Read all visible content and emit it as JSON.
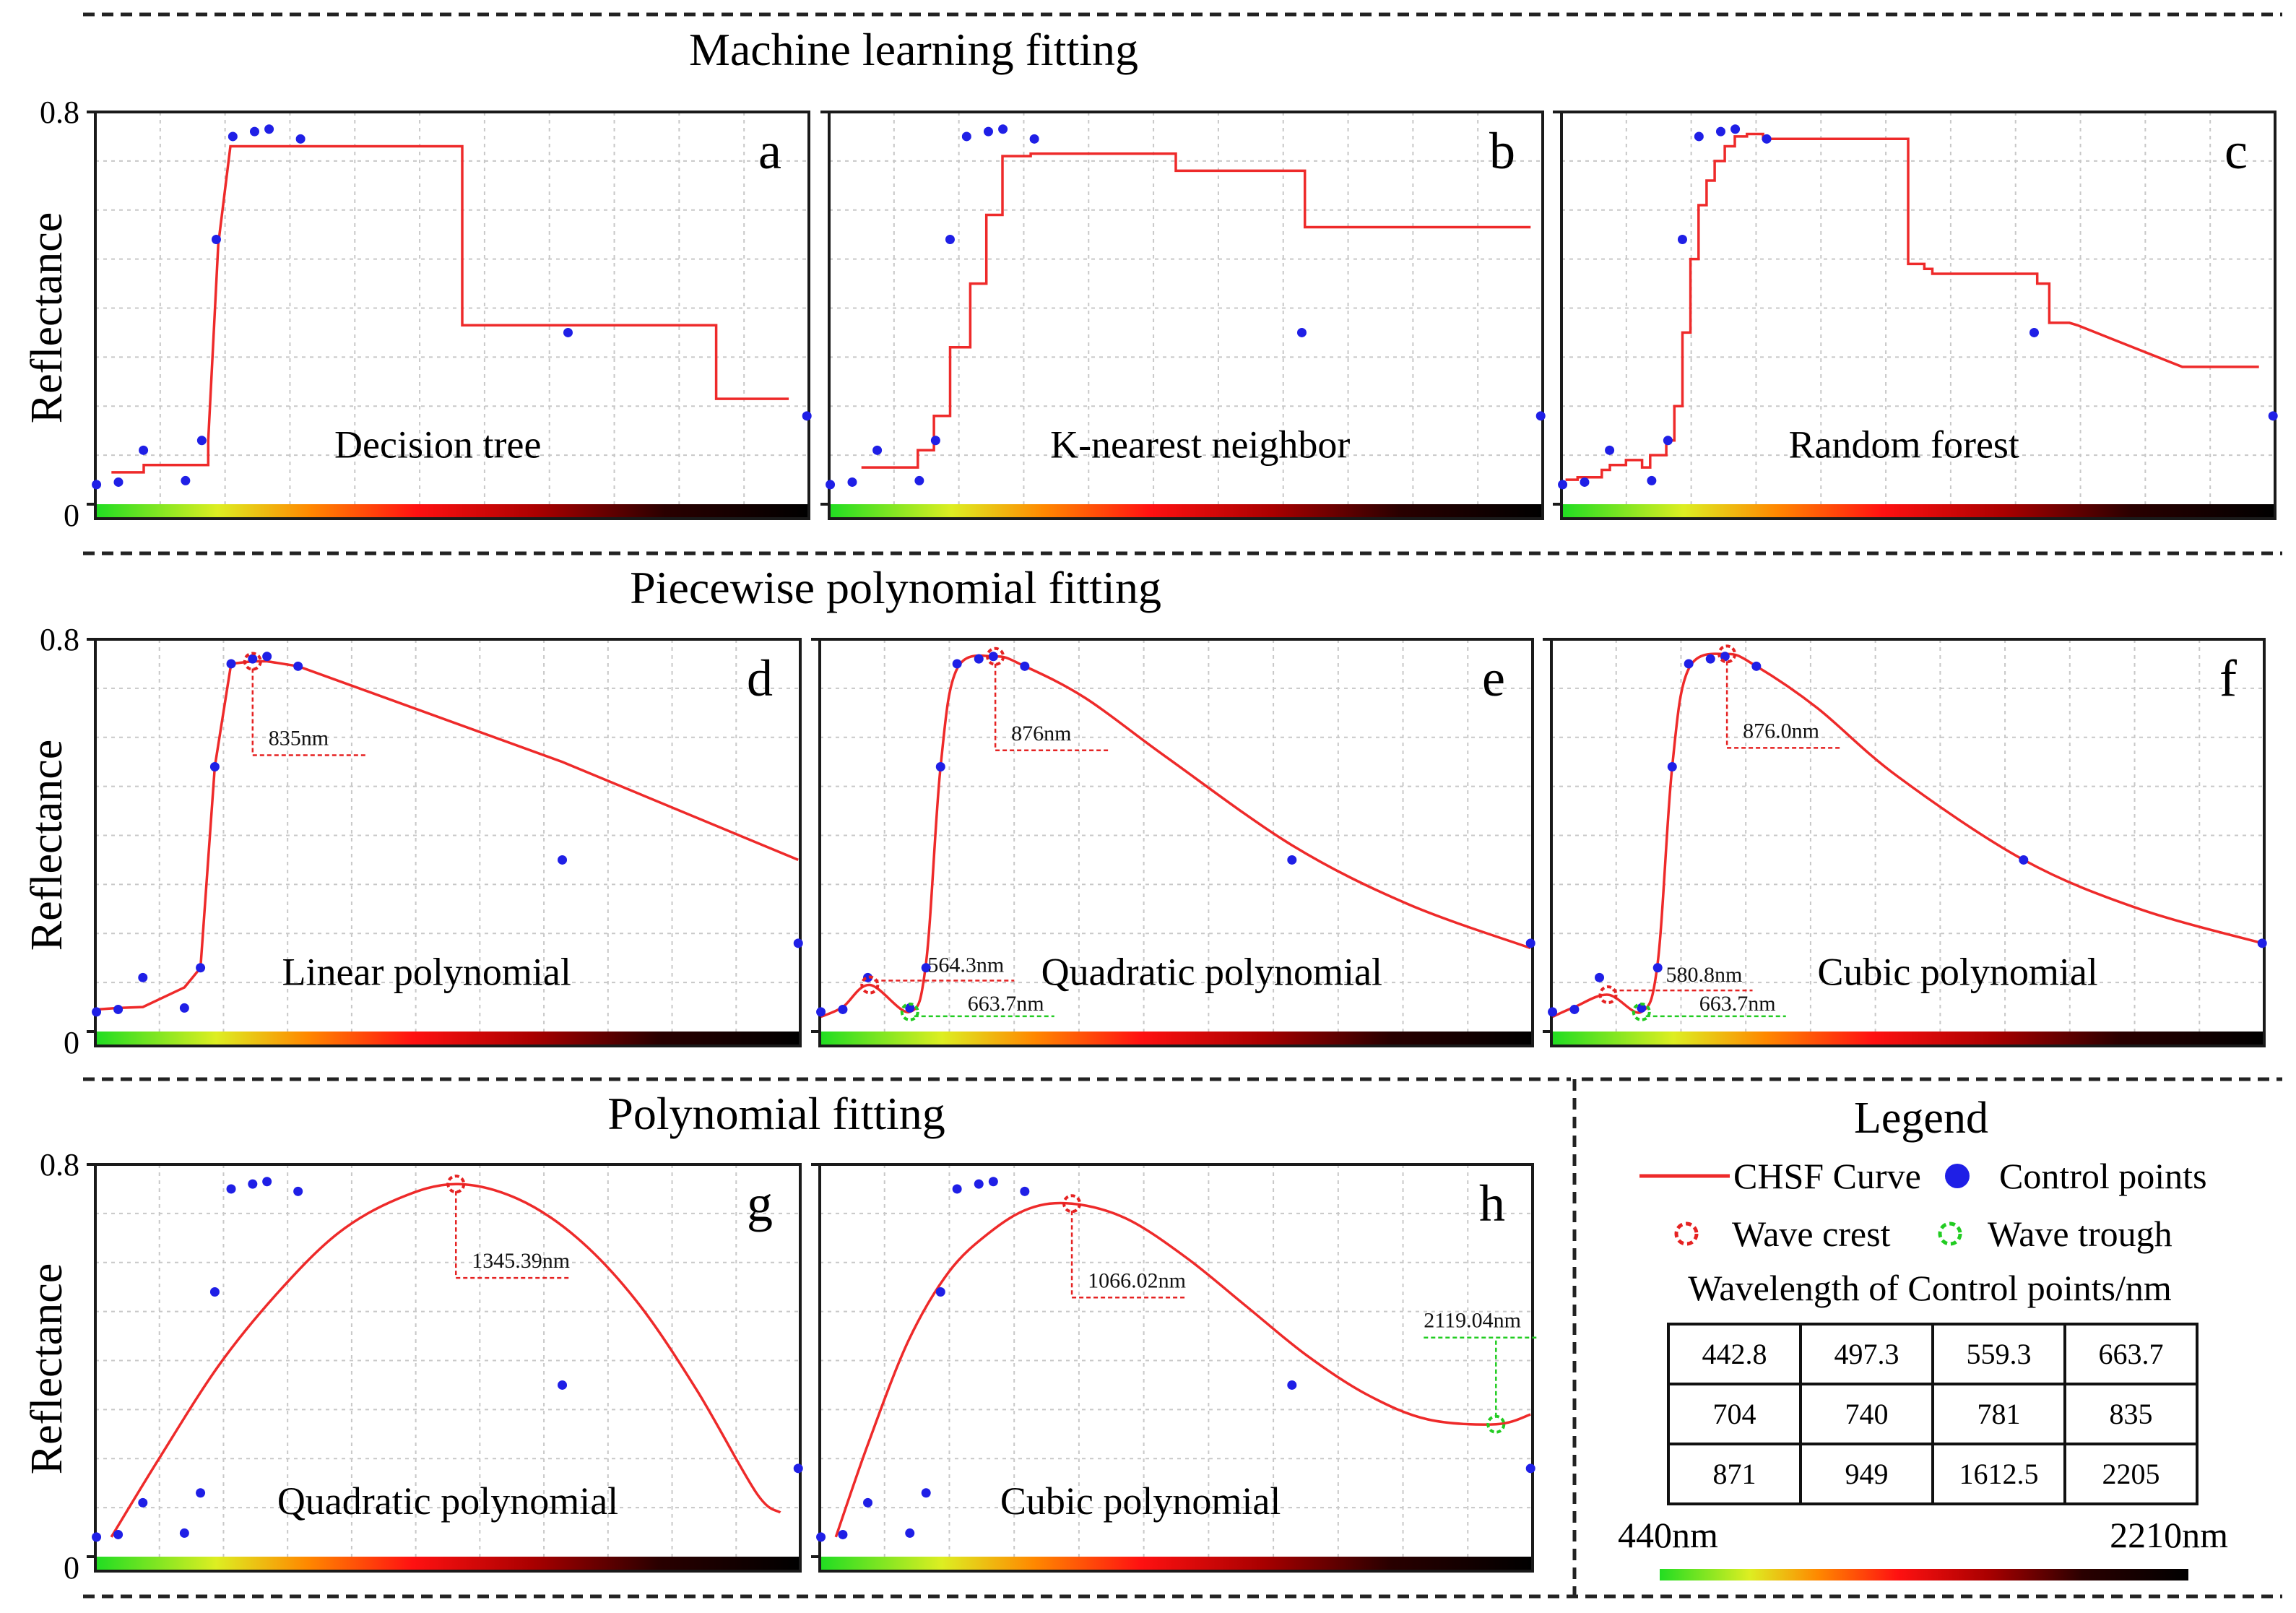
{
  "sections": {
    "ml": "Machine learning fitting",
    "piecewise": "Piecewise polynomial fitting",
    "poly": "Polynomial fitting"
  },
  "axes": {
    "ylabel": "Reflectance",
    "ymax_label": "0.8",
    "ymin_label": "0",
    "ylim": [
      0,
      0.8
    ],
    "xlim": [
      440,
      2210
    ]
  },
  "colors": {
    "curve": "#ee2a2a",
    "points": "#1f1fe6",
    "crest": "#e52222",
    "trough": "#22cc22",
    "grid": "#c8c8c8"
  },
  "control_points": {
    "wavelength": [
      442.8,
      497.3,
      559.3,
      663.7,
      704,
      740,
      781,
      835,
      871,
      949,
      1612.5,
      2205
    ],
    "reflectance": [
      0.04,
      0.045,
      0.11,
      0.048,
      0.13,
      0.54,
      0.75,
      0.76,
      0.765,
      0.745,
      0.35,
      0.18
    ]
  },
  "chart_data": [
    {
      "id": "a",
      "type": "line",
      "letter": "a",
      "label": "Decision tree",
      "series": [
        {
          "name": "CHSF Curve",
          "x": [
            480,
            560,
            560,
            720,
            720,
            745,
            745,
            775,
            775,
            1350,
            1350,
            1980,
            1980,
            2160
          ],
          "y": [
            0.065,
            0.065,
            0.08,
            0.08,
            0.13,
            0.53,
            0.53,
            0.73,
            0.73,
            0.73,
            0.365,
            0.365,
            0.215,
            0.215
          ]
        }
      ]
    },
    {
      "id": "b",
      "type": "line",
      "letter": "b",
      "label": "K-nearest neighbor",
      "series": [
        {
          "name": "CHSF Curve",
          "x": [
            520,
            660,
            660,
            700,
            700,
            740,
            740,
            790,
            790,
            830,
            830,
            870,
            870,
            940,
            940,
            1300,
            1300,
            1620,
            1620,
            2180
          ],
          "y": [
            0.075,
            0.075,
            0.11,
            0.11,
            0.18,
            0.18,
            0.32,
            0.32,
            0.45,
            0.45,
            0.59,
            0.59,
            0.71,
            0.71,
            0.715,
            0.715,
            0.68,
            0.68,
            0.565,
            0.565
          ]
        }
      ]
    },
    {
      "id": "c",
      "type": "line",
      "letter": "c",
      "label": "Random forest",
      "series": [
        {
          "name": "CHSF Curve",
          "x": [
            450,
            480,
            480,
            540,
            540,
            560,
            560,
            600,
            600,
            640,
            640,
            660,
            660,
            700,
            700,
            720,
            720,
            740,
            740,
            760,
            760,
            780,
            780,
            800,
            800,
            820,
            820,
            845,
            845,
            870,
            870,
            900,
            900,
            940,
            940,
            1300,
            1300,
            1340,
            1340,
            1360,
            1360,
            1620,
            1620,
            1650,
            1650,
            1650,
            1700,
            1700,
            1720,
            1720,
            1980,
            1980,
            2170
          ],
          "y": [
            0.05,
            0.05,
            0.055,
            0.055,
            0.07,
            0.07,
            0.08,
            0.08,
            0.09,
            0.09,
            0.075,
            0.075,
            0.1,
            0.1,
            0.13,
            0.13,
            0.2,
            0.2,
            0.35,
            0.35,
            0.5,
            0.5,
            0.61,
            0.61,
            0.66,
            0.66,
            0.7,
            0.7,
            0.73,
            0.73,
            0.75,
            0.75,
            0.755,
            0.755,
            0.745,
            0.745,
            0.49,
            0.49,
            0.48,
            0.48,
            0.47,
            0.47,
            0.45,
            0.45,
            0.37,
            0.37,
            0.37,
            0.37,
            0.365,
            0.365,
            0.28,
            0.28,
            0.28
          ]
        }
      ]
    },
    {
      "id": "d",
      "type": "line",
      "letter": "d",
      "label": "Linear polynomial",
      "series": [
        {
          "name": "CHSF Curve",
          "x": [
            442.8,
            497.3,
            559.3,
            663.7,
            704,
            740,
            781,
            835,
            871,
            949,
            1612.5,
            2205
          ],
          "y": [
            0.045,
            0.048,
            0.05,
            0.09,
            0.13,
            0.54,
            0.75,
            0.755,
            0.755,
            0.745,
            0.55,
            0.35
          ]
        }
      ],
      "crests": [
        {
          "x": 835,
          "y": 0.755,
          "label": "835nm"
        }
      ],
      "troughs": []
    },
    {
      "id": "e",
      "type": "line",
      "letter": "e",
      "label": "Quadratic polynomial",
      "series": [
        {
          "name": "CHSF Curve",
          "x": [
            442.8,
            497.3,
            564.3,
            663.7,
            704,
            740,
            781,
            876,
            949,
            1100,
            1300,
            1612.5,
            1900,
            2205
          ],
          "y": [
            0.03,
            0.05,
            0.095,
            0.04,
            0.14,
            0.54,
            0.74,
            0.765,
            0.745,
            0.68,
            0.56,
            0.38,
            0.26,
            0.17
          ]
        }
      ],
      "crests": [
        {
          "x": 876,
          "y": 0.765,
          "label": "876nm"
        },
        {
          "x": 564.3,
          "y": 0.095,
          "label": "564.3nm"
        }
      ],
      "troughs": [
        {
          "x": 663.7,
          "y": 0.04,
          "label": "663.7nm"
        }
      ]
    },
    {
      "id": "f",
      "type": "line",
      "letter": "f",
      "label": "Cubic polynomial",
      "series": [
        {
          "name": "CHSF Curve",
          "x": [
            442.8,
            497.3,
            580.8,
            663.7,
            704,
            740,
            781,
            876,
            949,
            1100,
            1300,
            1612.5,
            1900,
            2205
          ],
          "y": [
            0.03,
            0.05,
            0.075,
            0.04,
            0.14,
            0.54,
            0.74,
            0.77,
            0.745,
            0.66,
            0.52,
            0.35,
            0.25,
            0.18
          ]
        }
      ],
      "crests": [
        {
          "x": 876.0,
          "y": 0.77,
          "label": "876.0nm"
        },
        {
          "x": 580.8,
          "y": 0.075,
          "label": "580.8nm"
        }
      ],
      "troughs": [
        {
          "x": 663.7,
          "y": 0.04,
          "label": "663.7nm"
        }
      ]
    },
    {
      "id": "g",
      "type": "line",
      "letter": "g",
      "label": "Quadratic polynomial",
      "series": [
        {
          "name": "CHSF Curve",
          "x": [
            480,
            600,
            750,
            900,
            1050,
            1200,
            1345.39,
            1500,
            1650,
            1800,
            1950,
            2100,
            2160
          ],
          "y": [
            0.04,
            0.2,
            0.39,
            0.54,
            0.66,
            0.73,
            0.76,
            0.73,
            0.65,
            0.52,
            0.34,
            0.13,
            0.09
          ]
        }
      ],
      "crests": [
        {
          "x": 1345.39,
          "y": 0.76,
          "label": "1345.39nm"
        }
      ],
      "troughs": []
    },
    {
      "id": "h",
      "type": "line",
      "letter": "h",
      "label": "Cubic polynomial",
      "series": [
        {
          "name": "CHSF Curve",
          "x": [
            480,
            560,
            660,
            760,
            860,
            960,
            1066.02,
            1200,
            1350,
            1500,
            1650,
            1800,
            1950,
            2119.04,
            2205
          ],
          "y": [
            0.04,
            0.23,
            0.44,
            0.58,
            0.66,
            0.71,
            0.72,
            0.69,
            0.61,
            0.51,
            0.41,
            0.33,
            0.28,
            0.27,
            0.29
          ]
        }
      ],
      "crests": [
        {
          "x": 1066.02,
          "y": 0.72,
          "label": "1066.02nm"
        }
      ],
      "troughs": [
        {
          "x": 2119.04,
          "y": 0.27,
          "label": "2119.04nm"
        }
      ]
    }
  ],
  "legend": {
    "title": "Legend",
    "curve": "CHSF Curve",
    "points": "Control points",
    "crest": "Wave crest",
    "trough": "Wave trough",
    "table_title": "Wavelength of Control points/nm",
    "table": [
      [
        "442.8",
        "497.3",
        "559.3",
        "663.7"
      ],
      [
        "704",
        "740",
        "781",
        "835"
      ],
      [
        "871",
        "949",
        "1612.5",
        "2205"
      ]
    ],
    "range_start": "440nm",
    "range_end": "2210nm"
  }
}
